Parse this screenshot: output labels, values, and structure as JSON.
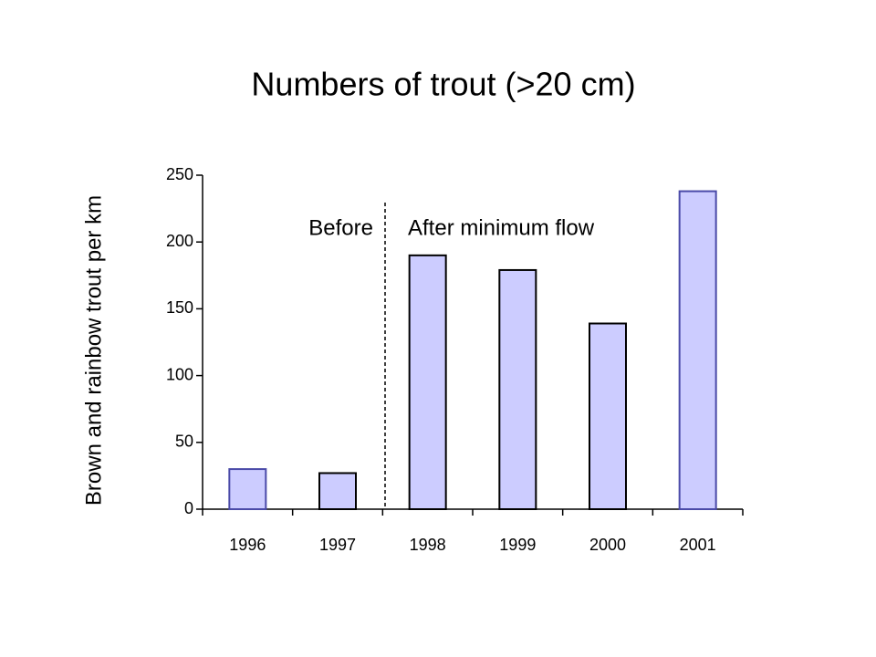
{
  "chart_data": {
    "type": "bar",
    "title": "Numbers of  trout (>20 cm)",
    "y_label": "Brown and rainbow trout per km",
    "annotations": [
      "Before",
      "After minimum flow"
    ],
    "categories": [
      "1996",
      "1997",
      "1998",
      "1999",
      "2000",
      "2001"
    ],
    "values": [
      30,
      27,
      190,
      179,
      139,
      238
    ],
    "color": "#ccccff",
    "edgecolors": [
      "#4a4aa8",
      "#000000",
      "#000000",
      "#000000",
      "#000000",
      "#4a4aa8"
    ],
    "ylim": [
      0,
      250
    ],
    "yticks": [
      0,
      50,
      100,
      150,
      200,
      250
    ],
    "grid": false
  }
}
